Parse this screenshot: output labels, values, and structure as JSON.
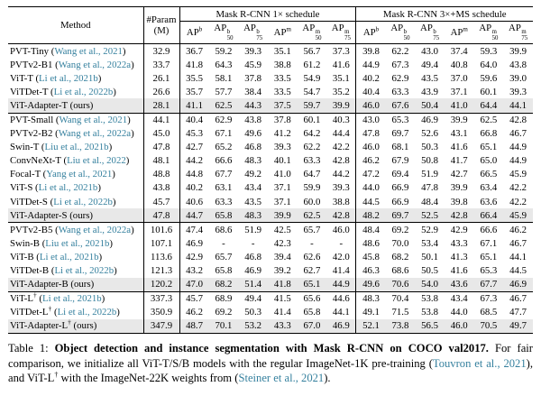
{
  "colors": {
    "citation": "#35809e",
    "highlight_row": "#e8e8e8",
    "rule": "#000000"
  },
  "table": {
    "ours_label": "(ours)",
    "dagger_symbol": "†",
    "header": {
      "method": "Method",
      "param_line1": "#Param",
      "param_line2": "(M)",
      "group1": "Mask R-CNN 1× schedule",
      "group2": "Mask R-CNN 3×+MS schedule",
      "metrics": [
        {
          "name": "AP",
          "sup": "b",
          "sub": ""
        },
        {
          "name": "AP",
          "sup": "b",
          "sub": "50"
        },
        {
          "name": "AP",
          "sup": "b",
          "sub": "75"
        },
        {
          "name": "AP",
          "sup": "m",
          "sub": ""
        },
        {
          "name": "AP",
          "sup": "m",
          "sub": "50"
        },
        {
          "name": "AP",
          "sup": "m",
          "sub": "75"
        }
      ]
    },
    "groups": [
      {
        "rows": [
          {
            "method": "PVT-Tiny",
            "cite": "Wang et al., 2021",
            "dagger": false,
            "ours": false,
            "param": "32.9",
            "v": [
              "36.7",
              "59.2",
              "39.3",
              "35.1",
              "56.7",
              "37.3",
              "39.8",
              "62.2",
              "43.0",
              "37.4",
              "59.3",
              "39.9"
            ]
          },
          {
            "method": "PVTv2-B1",
            "cite": "Wang et al., 2022a",
            "dagger": false,
            "ours": false,
            "param": "33.7",
            "v": [
              "41.8",
              "64.3",
              "45.9",
              "38.8",
              "61.2",
              "41.6",
              "44.9",
              "67.3",
              "49.4",
              "40.8",
              "64.0",
              "43.8"
            ]
          },
          {
            "method": "ViT-T",
            "cite": "Li et al., 2021b",
            "dagger": false,
            "ours": false,
            "param": "26.1",
            "v": [
              "35.5",
              "58.1",
              "37.8",
              "33.5",
              "54.9",
              "35.1",
              "40.2",
              "62.9",
              "43.5",
              "37.0",
              "59.6",
              "39.0"
            ]
          },
          {
            "method": "ViTDet-T",
            "cite": "Li et al., 2022b",
            "dagger": false,
            "ours": false,
            "param": "26.6",
            "v": [
              "35.7",
              "57.7",
              "38.4",
              "33.5",
              "54.7",
              "35.2",
              "40.4",
              "63.3",
              "43.9",
              "37.1",
              "60.1",
              "39.3"
            ]
          },
          {
            "method": "ViT-Adapter-T",
            "cite": "",
            "dagger": false,
            "ours": true,
            "param": "28.1",
            "v": [
              "41.1",
              "62.5",
              "44.3",
              "37.5",
              "59.7",
              "39.9",
              "46.0",
              "67.6",
              "50.4",
              "41.0",
              "64.4",
              "44.1"
            ]
          }
        ]
      },
      {
        "rows": [
          {
            "method": "PVT-Small",
            "cite": "Wang et al., 2021",
            "dagger": false,
            "ours": false,
            "param": "44.1",
            "v": [
              "40.4",
              "62.9",
              "43.8",
              "37.8",
              "60.1",
              "40.3",
              "43.0",
              "65.3",
              "46.9",
              "39.9",
              "62.5",
              "42.8"
            ]
          },
          {
            "method": "PVTv2-B2",
            "cite": "Wang et al., 2022a",
            "dagger": false,
            "ours": false,
            "param": "45.0",
            "v": [
              "45.3",
              "67.1",
              "49.6",
              "41.2",
              "64.2",
              "44.4",
              "47.8",
              "69.7",
              "52.6",
              "43.1",
              "66.8",
              "46.7"
            ]
          },
          {
            "method": "Swin-T",
            "cite": "Liu et al., 2021b",
            "dagger": false,
            "ours": false,
            "param": "47.8",
            "v": [
              "42.7",
              "65.2",
              "46.8",
              "39.3",
              "62.2",
              "42.2",
              "46.0",
              "68.1",
              "50.3",
              "41.6",
              "65.1",
              "44.9"
            ]
          },
          {
            "method": "ConvNeXt-T",
            "cite": "Liu et al., 2022",
            "dagger": false,
            "ours": false,
            "param": "48.1",
            "v": [
              "44.2",
              "66.6",
              "48.3",
              "40.1",
              "63.3",
              "42.8",
              "46.2",
              "67.9",
              "50.8",
              "41.7",
              "65.0",
              "44.9"
            ]
          },
          {
            "method": "Focal-T",
            "cite": "Yang et al., 2021",
            "dagger": false,
            "ours": false,
            "param": "48.8",
            "v": [
              "44.8",
              "67.7",
              "49.2",
              "41.0",
              "64.7",
              "44.2",
              "47.2",
              "69.4",
              "51.9",
              "42.7",
              "66.5",
              "45.9"
            ]
          },
          {
            "method": "ViT-S",
            "cite": "Li et al., 2021b",
            "dagger": false,
            "ours": false,
            "param": "43.8",
            "v": [
              "40.2",
              "63.1",
              "43.4",
              "37.1",
              "59.9",
              "39.3",
              "44.0",
              "66.9",
              "47.8",
              "39.9",
              "63.4",
              "42.2"
            ]
          },
          {
            "method": "ViTDet-S",
            "cite": "Li et al., 2022b",
            "dagger": false,
            "ours": false,
            "param": "45.7",
            "v": [
              "40.6",
              "63.3",
              "43.5",
              "37.1",
              "60.0",
              "38.8",
              "44.5",
              "66.9",
              "48.4",
              "39.8",
              "63.6",
              "42.2"
            ]
          },
          {
            "method": "ViT-Adapter-S",
            "cite": "",
            "dagger": false,
            "ours": true,
            "param": "47.8",
            "v": [
              "44.7",
              "65.8",
              "48.3",
              "39.9",
              "62.5",
              "42.8",
              "48.2",
              "69.7",
              "52.5",
              "42.8",
              "66.4",
              "45.9"
            ]
          }
        ]
      },
      {
        "rows": [
          {
            "method": "PVTv2-B5",
            "cite": "Wang et al., 2022a",
            "dagger": false,
            "ours": false,
            "param": "101.6",
            "v": [
              "47.4",
              "68.6",
              "51.9",
              "42.5",
              "65.7",
              "46.0",
              "48.4",
              "69.2",
              "52.9",
              "42.9",
              "66.6",
              "46.2"
            ]
          },
          {
            "method": "Swin-B",
            "cite": "Liu et al., 2021b",
            "dagger": false,
            "ours": false,
            "param": "107.1",
            "v": [
              "46.9",
              "-",
              "-",
              "42.3",
              "-",
              "-",
              "48.6",
              "70.0",
              "53.4",
              "43.3",
              "67.1",
              "46.7"
            ]
          },
          {
            "method": "ViT-B",
            "cite": "Li et al., 2021b",
            "dagger": false,
            "ours": false,
            "param": "113.6",
            "v": [
              "42.9",
              "65.7",
              "46.8",
              "39.4",
              "62.6",
              "42.0",
              "45.8",
              "68.2",
              "50.1",
              "41.3",
              "65.1",
              "44.1"
            ]
          },
          {
            "method": "ViTDet-B",
            "cite": "Li et al., 2022b",
            "dagger": false,
            "ours": false,
            "param": "121.3",
            "v": [
              "43.2",
              "65.8",
              "46.9",
              "39.2",
              "62.7",
              "41.4",
              "46.3",
              "68.6",
              "50.5",
              "41.6",
              "65.3",
              "44.5"
            ]
          },
          {
            "method": "ViT-Adapter-B",
            "cite": "",
            "dagger": false,
            "ours": true,
            "param": "120.2",
            "v": [
              "47.0",
              "68.2",
              "51.4",
              "41.8",
              "65.1",
              "44.9",
              "49.6",
              "70.6",
              "54.0",
              "43.6",
              "67.7",
              "46.9"
            ]
          }
        ]
      },
      {
        "rows": [
          {
            "method": "ViT-L",
            "cite": "Li et al., 2021b",
            "dagger": true,
            "ours": false,
            "param": "337.3",
            "v": [
              "45.7",
              "68.9",
              "49.4",
              "41.5",
              "65.6",
              "44.6",
              "48.3",
              "70.4",
              "53.8",
              "43.4",
              "67.3",
              "46.7"
            ]
          },
          {
            "method": "ViTDet-L",
            "cite": "Li et al., 2022b",
            "dagger": true,
            "ours": false,
            "param": "350.9",
            "v": [
              "46.2",
              "69.2",
              "50.3",
              "41.4",
              "65.8",
              "44.1",
              "49.1",
              "71.5",
              "53.8",
              "44.0",
              "68.5",
              "47.7"
            ]
          },
          {
            "method": "ViT-Adapter-L",
            "cite": "",
            "dagger": true,
            "ours": true,
            "param": "347.9",
            "v": [
              "48.7",
              "70.1",
              "53.2",
              "43.3",
              "67.0",
              "46.9",
              "52.1",
              "73.8",
              "56.5",
              "46.0",
              "70.5",
              "49.7"
            ]
          }
        ]
      }
    ]
  },
  "caption": {
    "label": "Table 1: ",
    "title": "Object detection and instance segmentation with Mask R-CNN on COCO val2017.",
    "seg1": " For fair comparison, we initialize all ViT-T/S/B models with the regular ImageNet-1K pre-training (",
    "cite1": "Touvron et al., 2021",
    "seg2": "), and ViT-L",
    "dagger": "†",
    "seg3": " with the ImageNet-22K weights from (",
    "cite2": "Steiner et al., 2021",
    "seg4": ")."
  }
}
